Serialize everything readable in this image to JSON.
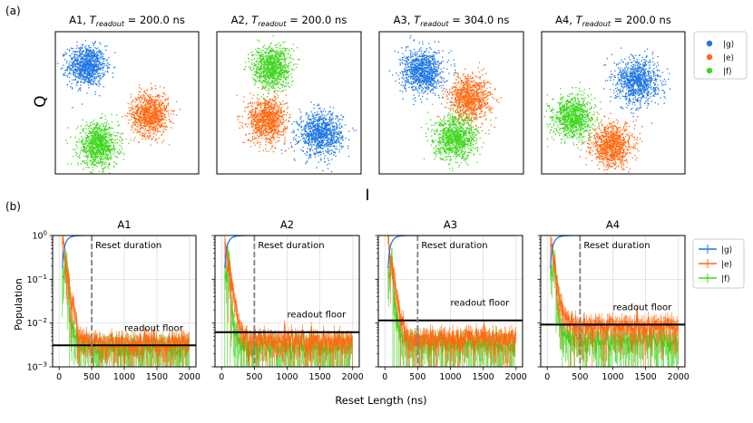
{
  "figure": {
    "panel_a_label": "(a)",
    "panel_b_label": "(b)",
    "iq_ylabel": "Q",
    "iq_xlabel": "I",
    "reset_ylabel": "Population",
    "reset_xlabel": "Reset Length (ns)"
  },
  "colors": {
    "g": "#1f77e4",
    "e": "#ff6a13",
    "f": "#3fd61e",
    "floor": "#000000",
    "reset_line": "#808080",
    "grid": "#d9d9d9"
  },
  "chart_data": [
    {
      "type": "scatter",
      "title_prefix": "A1, ",
      "title_t": "T",
      "title_sub": "readout",
      "title_value": " = 200.0 ns",
      "clusters": [
        {
          "state": "g",
          "cx": 0.22,
          "cy": 0.76,
          "sx": 0.065,
          "sy": 0.07
        },
        {
          "state": "e",
          "cx": 0.66,
          "cy": 0.42,
          "sx": 0.065,
          "sy": 0.075
        },
        {
          "state": "f",
          "cx": 0.3,
          "cy": 0.2,
          "sx": 0.07,
          "sy": 0.075
        }
      ]
    },
    {
      "type": "scatter",
      "title_prefix": "A2, ",
      "title_t": "T",
      "title_sub": "readout",
      "title_value": " = 200.0 ns",
      "clusters": [
        {
          "state": "g",
          "cx": 0.72,
          "cy": 0.28,
          "sx": 0.075,
          "sy": 0.075
        },
        {
          "state": "e",
          "cx": 0.35,
          "cy": 0.38,
          "sx": 0.065,
          "sy": 0.08
        },
        {
          "state": "f",
          "cx": 0.38,
          "cy": 0.75,
          "sx": 0.065,
          "sy": 0.075
        }
      ]
    },
    {
      "type": "scatter",
      "title_prefix": "A3, ",
      "title_t": "T",
      "title_sub": "readout",
      "title_value": " = 304.0 ns",
      "clusters": [
        {
          "state": "g",
          "cx": 0.3,
          "cy": 0.72,
          "sx": 0.07,
          "sy": 0.075
        },
        {
          "state": "e",
          "cx": 0.63,
          "cy": 0.53,
          "sx": 0.07,
          "sy": 0.08
        },
        {
          "state": "f",
          "cx": 0.53,
          "cy": 0.25,
          "sx": 0.075,
          "sy": 0.075
        }
      ]
    },
    {
      "type": "scatter",
      "title_prefix": "A4, ",
      "title_t": "T",
      "title_sub": "readout",
      "title_value": " = 200.0 ns",
      "clusters": [
        {
          "state": "g",
          "cx": 0.67,
          "cy": 0.65,
          "sx": 0.075,
          "sy": 0.08
        },
        {
          "state": "e",
          "cx": 0.49,
          "cy": 0.2,
          "sx": 0.07,
          "sy": 0.075
        },
        {
          "state": "f",
          "cx": 0.22,
          "cy": 0.4,
          "sx": 0.07,
          "sy": 0.075
        }
      ]
    },
    {
      "type": "line",
      "title": "A1",
      "floor": 0.0031,
      "e_tail": 0.0033,
      "f_tail": 0.0026,
      "noise": 0.3
    },
    {
      "type": "line",
      "title": "A2",
      "floor": 0.0062,
      "e_tail": 0.0038,
      "f_tail": 0.0028,
      "noise": 0.3
    },
    {
      "type": "line",
      "title": "A3",
      "floor": 0.0115,
      "e_tail": 0.0042,
      "f_tail": 0.0032,
      "noise": 0.28
    },
    {
      "type": "line",
      "title": "A4",
      "floor": 0.0092,
      "e_tail": 0.0085,
      "f_tail": 0.0038,
      "noise": 0.28
    }
  ],
  "reset_axes": {
    "xlim": [
      -100,
      2100
    ],
    "ylim": [
      0.001,
      1
    ],
    "log_y": true,
    "x_ticks": [
      0,
      500,
      1000,
      1500,
      2000
    ],
    "x_tick_labels": [
      "0",
      "500",
      "1000",
      "1500",
      "2000"
    ],
    "y_ticks": [
      1,
      0.1,
      0.01,
      0.001
    ],
    "y_tick_labels": [
      {
        "base": "10",
        "exp": "0"
      },
      {
        "base": "10",
        "exp": "−1"
      },
      {
        "base": "10",
        "exp": "−2"
      },
      {
        "base": "10",
        "exp": "−3"
      }
    ],
    "reset_duration_x": 500,
    "reset_duration_label": "Reset duration",
    "floor_label": "readout floor",
    "x_start": 50,
    "x_step": 12,
    "x_end": 2000,
    "g_decay_ns": 55,
    "e_decay_ns": 45,
    "f_decay_ns": 45
  },
  "legend_iq": [
    {
      "state": "g",
      "label": "|g⟩"
    },
    {
      "state": "e",
      "label": "|e⟩"
    },
    {
      "state": "f",
      "label": "|f⟩"
    }
  ],
  "legend_reset": [
    {
      "state": "g",
      "label": "|g⟩"
    },
    {
      "state": "e",
      "label": "|e⟩"
    },
    {
      "state": "f",
      "label": "|f⟩"
    }
  ]
}
